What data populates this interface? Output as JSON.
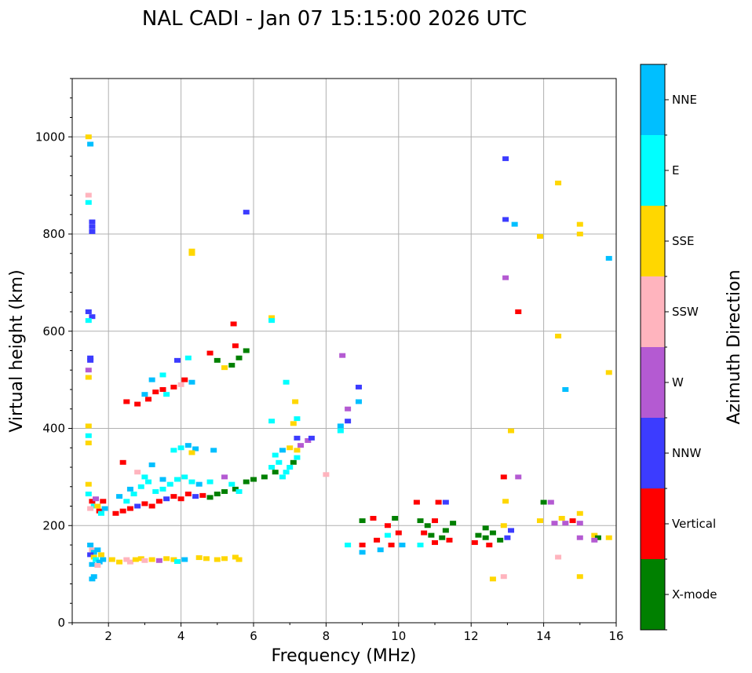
{
  "title": "NAL CADI - Jan 07 15:15:00 2026 UTC",
  "chart_data": {
    "type": "scatter",
    "title": "NAL CADI - Jan 07 15:15:00 2026 UTC",
    "xlabel": "Frequency (MHz)",
    "ylabel": "Virtual height (km)",
    "xlim": [
      1,
      16
    ],
    "ylim": [
      0,
      1120
    ],
    "xticks": [
      "2",
      "4",
      "6",
      "8",
      "10",
      "12",
      "14",
      "16"
    ],
    "xtick_values": [
      2,
      4,
      6,
      8,
      10,
      12,
      14,
      16
    ],
    "yticks": [
      "0",
      "200",
      "400",
      "600",
      "800",
      "1000"
    ],
    "ytick_values": [
      0,
      200,
      400,
      600,
      800,
      1000
    ],
    "grid": true,
    "colorbar": {
      "label": "Azimuth Direction",
      "categories": [
        {
          "name": "X-mode",
          "color": "#008000"
        },
        {
          "name": "Vertical",
          "color": "#ff0000"
        },
        {
          "name": "NNW",
          "color": "#3c3cff"
        },
        {
          "name": "W",
          "color": "#b45ad2"
        },
        {
          "name": "SSW",
          "color": "#ffb4be"
        },
        {
          "name": "SSE",
          "color": "#ffd700"
        },
        {
          "name": "E",
          "color": "#00ffff"
        },
        {
          "name": "NNE",
          "color": "#00bfff"
        }
      ]
    },
    "points": [
      [
        1.45,
        1000,
        "SSE"
      ],
      [
        1.5,
        985,
        "NNE"
      ],
      [
        1.45,
        880,
        "SSW"
      ],
      [
        1.45,
        865,
        "E"
      ],
      [
        1.55,
        825,
        "NNW"
      ],
      [
        1.55,
        815,
        "NNW"
      ],
      [
        1.55,
        805,
        "NNW"
      ],
      [
        1.45,
        640,
        "NNW"
      ],
      [
        1.55,
        630,
        "NNW"
      ],
      [
        1.45,
        622,
        "E"
      ],
      [
        1.5,
        545,
        "NNW"
      ],
      [
        1.5,
        540,
        "NNW"
      ],
      [
        1.45,
        520,
        "W"
      ],
      [
        1.45,
        505,
        "SSE"
      ],
      [
        1.45,
        405,
        "SSE"
      ],
      [
        1.45,
        385,
        "E"
      ],
      [
        1.45,
        370,
        "SSE"
      ],
      [
        1.45,
        285,
        "SSE"
      ],
      [
        1.45,
        265,
        "E"
      ],
      [
        1.55,
        250,
        "Vertical"
      ],
      [
        1.6,
        240,
        "E"
      ],
      [
        1.5,
        235,
        "SSW"
      ],
      [
        1.7,
        240,
        "SSE"
      ],
      [
        1.75,
        230,
        "Vertical"
      ],
      [
        1.8,
        225,
        "E"
      ],
      [
        1.9,
        235,
        "NNE"
      ],
      [
        1.65,
        255,
        "W"
      ],
      [
        1.85,
        250,
        "Vertical"
      ],
      [
        1.5,
        160,
        "NNE"
      ],
      [
        1.55,
        150,
        "SSW"
      ],
      [
        1.6,
        145,
        "NNE"
      ],
      [
        1.7,
        150,
        "NNE"
      ],
      [
        1.5,
        140,
        "NNW"
      ],
      [
        1.6,
        135,
        "SSE"
      ],
      [
        1.65,
        130,
        "E"
      ],
      [
        1.75,
        125,
        "NNE"
      ],
      [
        1.8,
        140,
        "SSE"
      ],
      [
        1.55,
        120,
        "NNE"
      ],
      [
        1.7,
        118,
        "SSW"
      ],
      [
        1.85,
        130,
        "NNE"
      ],
      [
        1.6,
        95,
        "NNE"
      ],
      [
        1.55,
        90,
        "NNE"
      ],
      [
        2.1,
        130,
        "SSE"
      ],
      [
        2.3,
        125,
        "SSE"
      ],
      [
        2.5,
        130,
        "SSW"
      ],
      [
        2.6,
        125,
        "SSW"
      ],
      [
        2.75,
        130,
        "SSE"
      ],
      [
        2.9,
        132,
        "SSE"
      ],
      [
        3.0,
        128,
        "SSW"
      ],
      [
        3.2,
        130,
        "SSE"
      ],
      [
        3.4,
        128,
        "W"
      ],
      [
        3.6,
        132,
        "SSE"
      ],
      [
        3.8,
        130,
        "SSE"
      ],
      [
        3.9,
        126,
        "E"
      ],
      [
        4.1,
        130,
        "NNE"
      ],
      [
        4.5,
        134,
        "SSE"
      ],
      [
        4.7,
        132,
        "SSE"
      ],
      [
        5.0,
        130,
        "SSE"
      ],
      [
        5.2,
        132,
        "SSE"
      ],
      [
        5.5,
        135,
        "SSE"
      ],
      [
        5.6,
        130,
        "SSE"
      ],
      [
        2.2,
        225,
        "Vertical"
      ],
      [
        2.4,
        230,
        "Vertical"
      ],
      [
        2.6,
        235,
        "Vertical"
      ],
      [
        2.8,
        240,
        "NNW"
      ],
      [
        3.0,
        245,
        "Vertical"
      ],
      [
        3.2,
        240,
        "Vertical"
      ],
      [
        3.4,
        250,
        "Vertical"
      ],
      [
        3.6,
        255,
        "NNW"
      ],
      [
        3.8,
        260,
        "Vertical"
      ],
      [
        4.0,
        255,
        "Vertical"
      ],
      [
        4.2,
        265,
        "Vertical"
      ],
      [
        4.4,
        260,
        "NNW"
      ],
      [
        4.6,
        262,
        "Vertical"
      ],
      [
        4.8,
        258,
        "X-mode"
      ],
      [
        5.0,
        265,
        "X-mode"
      ],
      [
        5.2,
        270,
        "X-mode"
      ],
      [
        5.5,
        275,
        "X-mode"
      ],
      [
        5.8,
        290,
        "X-mode"
      ],
      [
        6.0,
        295,
        "X-mode"
      ],
      [
        6.3,
        300,
        "X-mode"
      ],
      [
        6.6,
        310,
        "X-mode"
      ],
      [
        2.5,
        250,
        "E"
      ],
      [
        2.7,
        265,
        "E"
      ],
      [
        2.9,
        280,
        "E"
      ],
      [
        3.1,
        290,
        "E"
      ],
      [
        3.3,
        270,
        "E"
      ],
      [
        3.5,
        275,
        "E"
      ],
      [
        3.7,
        285,
        "E"
      ],
      [
        3.9,
        295,
        "E"
      ],
      [
        4.1,
        300,
        "E"
      ],
      [
        4.3,
        290,
        "E"
      ],
      [
        2.3,
        260,
        "NNE"
      ],
      [
        2.6,
        275,
        "NNE"
      ],
      [
        3.0,
        300,
        "E"
      ],
      [
        3.5,
        295,
        "NNE"
      ],
      [
        4.5,
        285,
        "NNE"
      ],
      [
        4.8,
        290,
        "E"
      ],
      [
        5.2,
        300,
        "W"
      ],
      [
        5.4,
        285,
        "E"
      ],
      [
        5.6,
        270,
        "E"
      ],
      [
        2.4,
        330,
        "Vertical"
      ],
      [
        2.8,
        310,
        "SSW"
      ],
      [
        3.2,
        325,
        "NNE"
      ],
      [
        3.8,
        355,
        "E"
      ],
      [
        4.0,
        360,
        "E"
      ],
      [
        4.2,
        365,
        "NNE"
      ],
      [
        4.4,
        358,
        "NNE"
      ],
      [
        4.9,
        355,
        "NNE"
      ],
      [
        4.3,
        350,
        "SSE"
      ],
      [
        6.5,
        320,
        "E"
      ],
      [
        6.7,
        330,
        "E"
      ],
      [
        6.8,
        300,
        "E"
      ],
      [
        6.9,
        310,
        "E"
      ],
      [
        7.0,
        320,
        "E"
      ],
      [
        7.1,
        330,
        "X-mode"
      ],
      [
        7.2,
        340,
        "E"
      ],
      [
        6.6,
        345,
        "E"
      ],
      [
        6.8,
        355,
        "NNE"
      ],
      [
        7.0,
        360,
        "SSE"
      ],
      [
        7.2,
        355,
        "SSE"
      ],
      [
        7.3,
        365,
        "W"
      ],
      [
        7.5,
        375,
        "W"
      ],
      [
        7.6,
        380,
        "NNW"
      ],
      [
        7.2,
        420,
        "E"
      ],
      [
        7.1,
        410,
        "SSE"
      ],
      [
        6.5,
        415,
        "E"
      ],
      [
        6.9,
        495,
        "E"
      ],
      [
        7.15,
        455,
        "SSE"
      ],
      [
        7.2,
        380,
        "NNW"
      ],
      [
        2.5,
        455,
        "Vertical"
      ],
      [
        2.8,
        450,
        "Vertical"
      ],
      [
        3.0,
        470,
        "NNE"
      ],
      [
        3.1,
        460,
        "Vertical"
      ],
      [
        3.3,
        475,
        "Vertical"
      ],
      [
        3.5,
        480,
        "Vertical"
      ],
      [
        3.6,
        470,
        "E"
      ],
      [
        3.8,
        485,
        "Vertical"
      ],
      [
        4.0,
        490,
        "SSW"
      ],
      [
        4.1,
        500,
        "Vertical"
      ],
      [
        4.3,
        495,
        "NNE"
      ],
      [
        3.9,
        540,
        "NNW"
      ],
      [
        4.2,
        545,
        "E"
      ],
      [
        3.5,
        510,
        "E"
      ],
      [
        3.2,
        500,
        "NNE"
      ],
      [
        4.8,
        555,
        "Vertical"
      ],
      [
        5.0,
        540,
        "X-mode"
      ],
      [
        5.2,
        525,
        "SSE"
      ],
      [
        5.4,
        530,
        "X-mode"
      ],
      [
        5.6,
        545,
        "X-mode"
      ],
      [
        5.8,
        560,
        "X-mode"
      ],
      [
        5.5,
        570,
        "Vertical"
      ],
      [
        5.45,
        615,
        "Vertical"
      ],
      [
        4.3,
        765,
        "SSE"
      ],
      [
        4.3,
        760,
        "SSE"
      ],
      [
        5.8,
        845,
        "NNW"
      ],
      [
        6.5,
        628,
        "SSE"
      ],
      [
        6.5,
        622,
        "E"
      ],
      [
        8.0,
        305,
        "SSW"
      ],
      [
        8.4,
        405,
        "NNE"
      ],
      [
        8.6,
        415,
        "NNW"
      ],
      [
        8.6,
        440,
        "W"
      ],
      [
        8.4,
        395,
        "E"
      ],
      [
        8.9,
        455,
        "NNE"
      ],
      [
        8.9,
        485,
        "NNW"
      ],
      [
        8.45,
        550,
        "W"
      ],
      [
        8.6,
        160,
        "E"
      ],
      [
        9.0,
        210,
        "X-mode"
      ],
      [
        9.0,
        160,
        "Vertical"
      ],
      [
        9.0,
        145,
        "NNE"
      ],
      [
        9.3,
        215,
        "Vertical"
      ],
      [
        9.4,
        170,
        "Vertical"
      ],
      [
        9.5,
        150,
        "NNE"
      ],
      [
        9.7,
        200,
        "Vertical"
      ],
      [
        9.7,
        180,
        "E"
      ],
      [
        9.8,
        160,
        "Vertical"
      ],
      [
        9.9,
        215,
        "X-mode"
      ],
      [
        10.0,
        185,
        "Vertical"
      ],
      [
        10.1,
        160,
        "NNE"
      ],
      [
        10.5,
        248,
        "Vertical"
      ],
      [
        10.6,
        210,
        "X-mode"
      ],
      [
        10.7,
        185,
        "Vertical"
      ],
      [
        10.9,
        180,
        "X-mode"
      ],
      [
        11.0,
        165,
        "Vertical"
      ],
      [
        11.2,
        175,
        "X-mode"
      ],
      [
        10.6,
        160,
        "E"
      ],
      [
        11.1,
        248,
        "Vertical"
      ],
      [
        11.3,
        190,
        "X-mode"
      ],
      [
        11.4,
        170,
        "Vertical"
      ],
      [
        11.5,
        205,
        "X-mode"
      ],
      [
        11.3,
        248,
        "NNW"
      ],
      [
        10.8,
        200,
        "X-mode"
      ],
      [
        11.0,
        210,
        "Vertical"
      ],
      [
        12.1,
        165,
        "Vertical"
      ],
      [
        12.2,
        180,
        "X-mode"
      ],
      [
        12.4,
        175,
        "X-mode"
      ],
      [
        12.6,
        185,
        "X-mode"
      ],
      [
        12.8,
        170,
        "X-mode"
      ],
      [
        12.5,
        160,
        "Vertical"
      ],
      [
        12.4,
        195,
        "X-mode"
      ],
      [
        13.0,
        175,
        "NNW"
      ],
      [
        13.1,
        190,
        "NNW"
      ],
      [
        12.9,
        200,
        "SSE"
      ],
      [
        12.6,
        90,
        "SSE"
      ],
      [
        12.9,
        95,
        "SSW"
      ],
      [
        12.95,
        955,
        "NNW"
      ],
      [
        12.95,
        830,
        "NNW"
      ],
      [
        13.2,
        820,
        "NNE"
      ],
      [
        12.95,
        710,
        "W"
      ],
      [
        13.3,
        640,
        "Vertical"
      ],
      [
        12.9,
        300,
        "Vertical"
      ],
      [
        13.3,
        300,
        "W"
      ],
      [
        12.95,
        250,
        "SSE"
      ],
      [
        13.1,
        395,
        "SSE"
      ],
      [
        13.9,
        795,
        "SSE"
      ],
      [
        14.0,
        248,
        "X-mode"
      ],
      [
        14.2,
        248,
        "W"
      ],
      [
        13.9,
        210,
        "SSE"
      ],
      [
        14.3,
        205,
        "W"
      ],
      [
        14.5,
        215,
        "SSE"
      ],
      [
        14.6,
        205,
        "W"
      ],
      [
        14.8,
        210,
        "Vertical"
      ],
      [
        14.4,
        135,
        "SSW"
      ],
      [
        14.4,
        905,
        "SSE"
      ],
      [
        14.4,
        590,
        "SSE"
      ],
      [
        14.6,
        480,
        "NNE"
      ],
      [
        15.0,
        820,
        "SSE"
      ],
      [
        15.0,
        800,
        "SSE"
      ],
      [
        15.0,
        225,
        "SSE"
      ],
      [
        15.0,
        205,
        "W"
      ],
      [
        15.0,
        175,
        "W"
      ],
      [
        15.4,
        180,
        "SSE"
      ],
      [
        15.5,
        175,
        "X-mode"
      ],
      [
        15.4,
        170,
        "W"
      ],
      [
        15.0,
        95,
        "SSE"
      ],
      [
        15.8,
        175,
        "SSE"
      ],
      [
        15.8,
        750,
        "NNE"
      ],
      [
        15.8,
        515,
        "SSE"
      ]
    ]
  }
}
